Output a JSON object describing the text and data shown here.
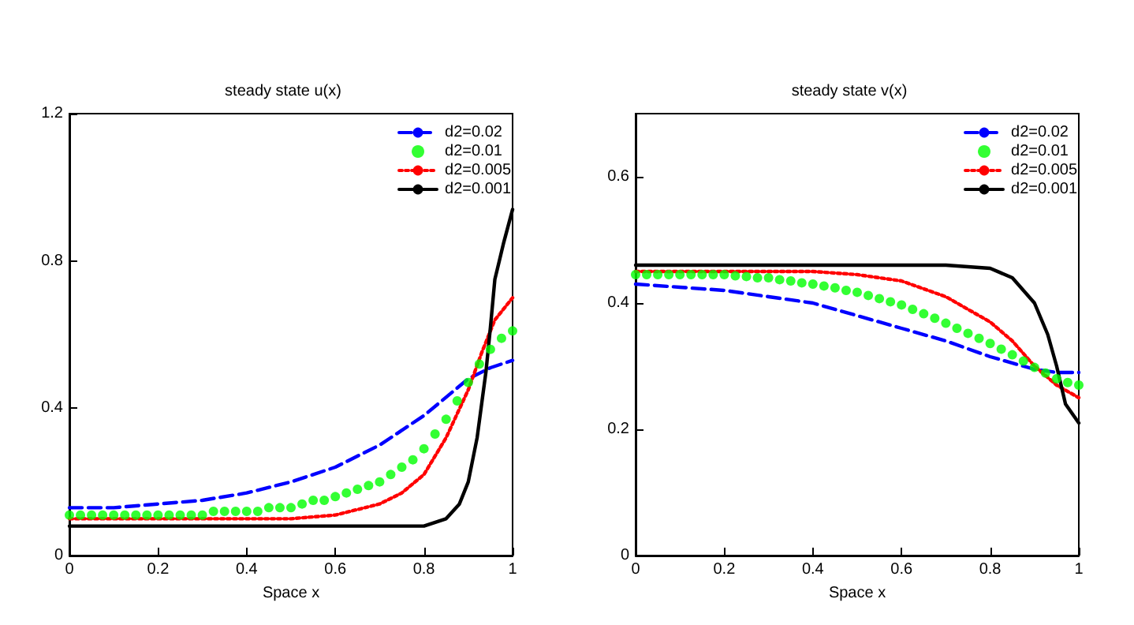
{
  "chart_data": [
    {
      "type": "line",
      "title": "steady state u(x)",
      "xlabel": "Space x",
      "xlim": [
        0,
        1
      ],
      "xticks": [
        0,
        0.2,
        0.4,
        0.6,
        0.8,
        1
      ],
      "ylim": [
        0,
        1.2
      ],
      "yticks": [
        0,
        0.4,
        0.8,
        1.2
      ],
      "grid": false,
      "legend": "top right",
      "series": [
        {
          "name": "d2=0.02",
          "color": "#0000ff",
          "line_style": "dashed",
          "marker": "none",
          "x": [
            0,
            0.1,
            0.2,
            0.3,
            0.4,
            0.5,
            0.6,
            0.7,
            0.8,
            0.85,
            0.9,
            0.95,
            1
          ],
          "values": [
            0.13,
            0.13,
            0.14,
            0.15,
            0.17,
            0.2,
            0.24,
            0.3,
            0.38,
            0.43,
            0.48,
            0.51,
            0.53
          ]
        },
        {
          "name": "d2=0.01",
          "color": "#00ff00",
          "type": "scatter",
          "marker": "circle",
          "x": [
            0,
            0.025,
            0.05,
            0.075,
            0.1,
            0.125,
            0.15,
            0.175,
            0.2,
            0.225,
            0.25,
            0.275,
            0.3,
            0.325,
            0.35,
            0.375,
            0.4,
            0.425,
            0.45,
            0.475,
            0.5,
            0.525,
            0.55,
            0.575,
            0.6,
            0.625,
            0.65,
            0.675,
            0.7,
            0.725,
            0.75,
            0.775,
            0.8,
            0.825,
            0.85,
            0.875,
            0.9,
            0.925,
            0.95,
            0.975,
            1
          ],
          "values": [
            0.11,
            0.11,
            0.11,
            0.11,
            0.11,
            0.11,
            0.11,
            0.11,
            0.11,
            0.11,
            0.11,
            0.11,
            0.11,
            0.12,
            0.12,
            0.12,
            0.12,
            0.12,
            0.13,
            0.13,
            0.13,
            0.14,
            0.15,
            0.15,
            0.16,
            0.17,
            0.18,
            0.19,
            0.2,
            0.22,
            0.24,
            0.26,
            0.29,
            0.33,
            0.37,
            0.42,
            0.47,
            0.52,
            0.56,
            0.59,
            0.61
          ]
        },
        {
          "name": "d2=0.005",
          "color": "#ff0000",
          "line_style": "dotted",
          "marker": "none",
          "x": [
            0,
            0.1,
            0.2,
            0.3,
            0.4,
            0.5,
            0.6,
            0.7,
            0.75,
            0.8,
            0.85,
            0.9,
            0.93,
            0.96,
            1
          ],
          "values": [
            0.1,
            0.1,
            0.1,
            0.1,
            0.1,
            0.1,
            0.11,
            0.14,
            0.17,
            0.22,
            0.32,
            0.45,
            0.55,
            0.64,
            0.7
          ]
        },
        {
          "name": "d2=0.001",
          "color": "#000000",
          "line_style": "solid",
          "marker": "none",
          "x": [
            0,
            0.2,
            0.4,
            0.6,
            0.8,
            0.85,
            0.88,
            0.9,
            0.92,
            0.94,
            0.95,
            0.96,
            0.97,
            0.98,
            1
          ],
          "values": [
            0.08,
            0.08,
            0.08,
            0.08,
            0.08,
            0.1,
            0.14,
            0.2,
            0.32,
            0.5,
            0.62,
            0.75,
            0.8,
            0.85,
            0.94
          ]
        }
      ]
    },
    {
      "type": "line",
      "title": "steady state v(x)",
      "xlabel": "Space x",
      "xlim": [
        0,
        1
      ],
      "xticks": [
        0,
        0.2,
        0.4,
        0.6,
        0.8,
        1
      ],
      "ylim": [
        0,
        0.7
      ],
      "yticks": [
        0,
        0.2,
        0.4,
        0.6
      ],
      "grid": false,
      "legend": "top right",
      "series": [
        {
          "name": "d2=0.02",
          "color": "#0000ff",
          "line_style": "dashed",
          "marker": "none",
          "x": [
            0,
            0.1,
            0.2,
            0.3,
            0.4,
            0.5,
            0.6,
            0.7,
            0.8,
            0.9,
            0.95,
            1
          ],
          "values": [
            0.43,
            0.425,
            0.42,
            0.41,
            0.4,
            0.38,
            0.36,
            0.34,
            0.315,
            0.295,
            0.29,
            0.29
          ]
        },
        {
          "name": "d2=0.01",
          "color": "#00ff00",
          "type": "scatter",
          "marker": "circle",
          "x": [
            0,
            0.025,
            0.05,
            0.075,
            0.1,
            0.125,
            0.15,
            0.175,
            0.2,
            0.225,
            0.25,
            0.275,
            0.3,
            0.325,
            0.35,
            0.375,
            0.4,
            0.425,
            0.45,
            0.475,
            0.5,
            0.525,
            0.55,
            0.575,
            0.6,
            0.625,
            0.65,
            0.675,
            0.7,
            0.725,
            0.75,
            0.775,
            0.8,
            0.825,
            0.85,
            0.875,
            0.9,
            0.925,
            0.95,
            0.975,
            1
          ],
          "values": [
            0.445,
            0.445,
            0.445,
            0.445,
            0.445,
            0.445,
            0.445,
            0.445,
            0.445,
            0.443,
            0.442,
            0.44,
            0.44,
            0.437,
            0.435,
            0.432,
            0.43,
            0.427,
            0.424,
            0.42,
            0.417,
            0.412,
            0.407,
            0.402,
            0.397,
            0.39,
            0.383,
            0.376,
            0.368,
            0.36,
            0.352,
            0.344,
            0.336,
            0.327,
            0.318,
            0.308,
            0.298,
            0.289,
            0.28,
            0.274,
            0.27
          ]
        },
        {
          "name": "d2=0.005",
          "color": "#ff0000",
          "line_style": "dotted",
          "marker": "none",
          "x": [
            0,
            0.2,
            0.4,
            0.5,
            0.6,
            0.7,
            0.8,
            0.85,
            0.9,
            0.95,
            1
          ],
          "values": [
            0.45,
            0.45,
            0.45,
            0.445,
            0.435,
            0.41,
            0.37,
            0.34,
            0.3,
            0.27,
            0.25
          ]
        },
        {
          "name": "d2=0.001",
          "color": "#000000",
          "line_style": "solid",
          "marker": "none",
          "x": [
            0,
            0.2,
            0.4,
            0.6,
            0.7,
            0.8,
            0.85,
            0.9,
            0.93,
            0.95,
            0.97,
            1
          ],
          "values": [
            0.46,
            0.46,
            0.46,
            0.46,
            0.46,
            0.455,
            0.44,
            0.4,
            0.35,
            0.3,
            0.24,
            0.21
          ]
        }
      ]
    }
  ]
}
